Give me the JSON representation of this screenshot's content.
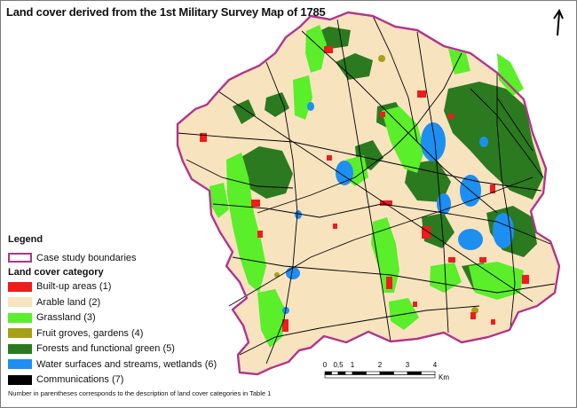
{
  "title": "Land cover derived from the 1st Military Survey Map of 1785",
  "legend": {
    "heading": "Legend",
    "boundary_label": "Case study boundaries",
    "boundary_color": "#b0348c",
    "category_heading": "Land cover category",
    "categories": [
      {
        "label": "Built-up areas (1)",
        "color": "#ee1c1c"
      },
      {
        "label": "Arable land (2)",
        "color": "#f8e3bf"
      },
      {
        "label": "Grassland (3)",
        "color": "#5bee2a"
      },
      {
        "label": "Fruit groves, gardens (4)",
        "color": "#a6a017"
      },
      {
        "label": "Forests and functional green (5)",
        "color": "#2b7a1f"
      },
      {
        "label": "Water surfaces and streams, wetlands (6)",
        "color": "#1d8ff0"
      },
      {
        "label": "Communications (7)",
        "color": "#000000"
      }
    ]
  },
  "footnote": "Number in parentheses corresponds to the description of land cover categories in Table 1",
  "scale_bar": {
    "ticks": [
      "0",
      "0,5",
      "1",
      "2",
      "3",
      "4"
    ],
    "unit": "Km"
  },
  "north_arrow_icon": "north-arrow-icon"
}
